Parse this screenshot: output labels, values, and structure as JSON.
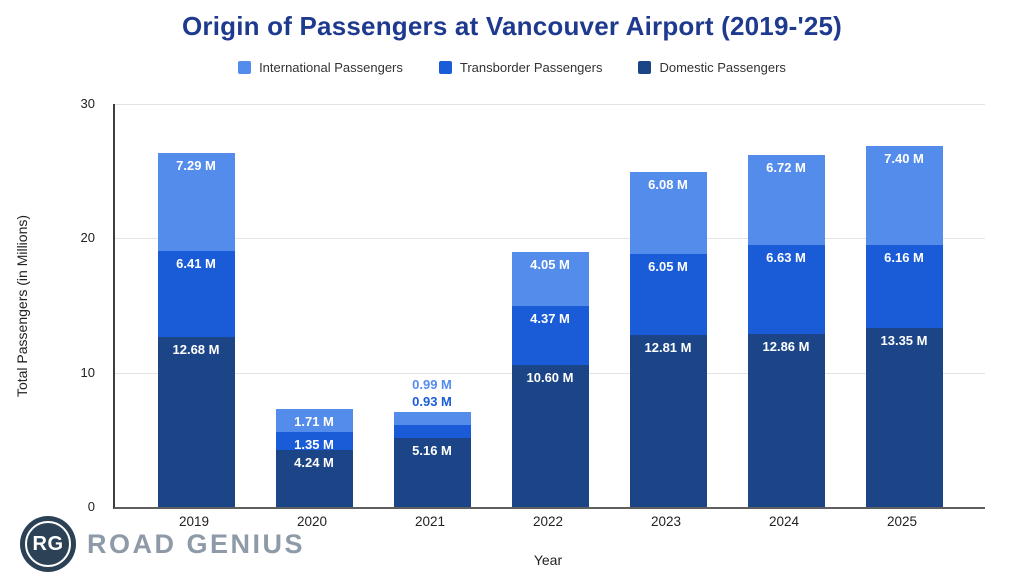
{
  "title": "Origin of Passengers at Vancouver Airport (2019-'25)",
  "chart_data": {
    "type": "bar",
    "stacked": true,
    "title": "Origin of Passengers at Vancouver Airport (2019-'25)",
    "categories": [
      "2019",
      "2020",
      "2021",
      "2022",
      "2023",
      "2024",
      "2025"
    ],
    "series": [
      {
        "name": "International Passengers",
        "color": "#548ceb",
        "values": [
          7.29,
          1.71,
          0.99,
          4.05,
          6.08,
          6.72,
          7.4
        ],
        "labels": [
          "7.29 M",
          "1.71 M",
          "0.99 M",
          "4.05 M",
          "6.08 M",
          "6.72 M",
          "7.40 M"
        ]
      },
      {
        "name": "Transborder Passengers",
        "color": "#1a5cd8",
        "values": [
          6.41,
          1.35,
          0.93,
          4.37,
          6.05,
          6.63,
          6.16
        ],
        "labels": [
          "6.41 M",
          "1.35 M",
          "0.93 M",
          "4.37 M",
          "6.05 M",
          "6.63 M",
          "6.16 M"
        ]
      },
      {
        "name": "Domestic Passengers",
        "color": "#1c4587",
        "values": [
          12.68,
          4.24,
          5.16,
          10.6,
          12.81,
          12.86,
          13.35
        ],
        "labels": [
          "12.68 M",
          "4.24 M",
          "5.16 M",
          "10.60 M",
          "12.81 M",
          "12.86 M",
          "13.35 M"
        ]
      }
    ],
    "xlabel": "Year",
    "ylabel": "Total Passengers (in Millions)",
    "ylim": [
      0,
      30
    ],
    "yticks": [
      0,
      10,
      20,
      30
    ],
    "grid": true,
    "legend_position": "top",
    "label_color_inside": "#ffffff"
  },
  "branding": {
    "logo_monogram": "RG",
    "logo_text": "ROAD GENIUS"
  }
}
